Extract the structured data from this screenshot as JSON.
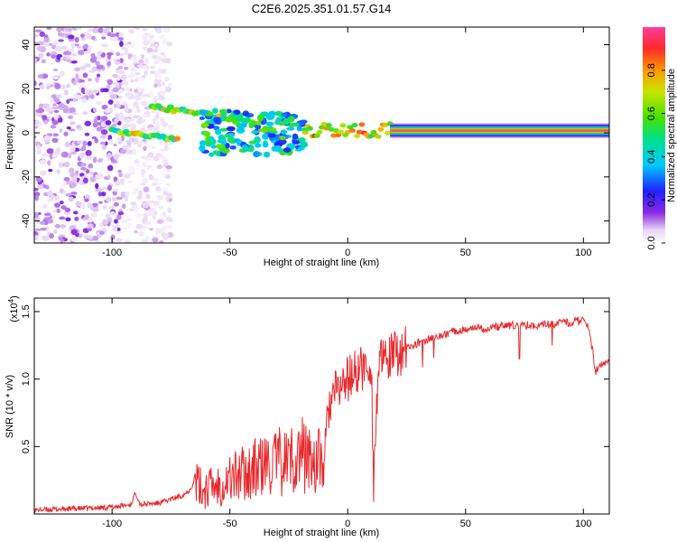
{
  "title": "C2E6.2025.351.01.57.G14",
  "chart_data": [
    {
      "type": "heatmap",
      "xlabel": "Height of straight line (km)",
      "ylabel": "Frequency (Hz)",
      "xlim": [
        -133,
        111
      ],
      "ylim": [
        -50,
        48
      ],
      "xticks": [
        -100,
        -50,
        0,
        50,
        100
      ],
      "yticks": [
        -40,
        -20,
        0,
        20,
        40
      ],
      "colorbar": {
        "label": "Normalized spectral amplitude",
        "range": [
          0,
          1
        ],
        "ticks": [
          "0.0",
          "0.2",
          "0.4",
          "0.6",
          "0.8"
        ]
      },
      "features": [
        {
          "name": "carrier-line",
          "x": [
            18,
            111
          ],
          "freq_hz": 1,
          "amplitude": 1.0
        },
        {
          "name": "upper-branch",
          "x": [
            -83,
            -40
          ],
          "freq_hz_start": 12,
          "freq_hz_end": 5,
          "amplitude": 0.7
        },
        {
          "name": "lower-branch",
          "x": [
            -100,
            -72
          ],
          "freq_hz_start": 1,
          "freq_hz_end": -3,
          "amplitude": 0.75
        },
        {
          "name": "turbulent-region",
          "x": [
            -62,
            -18
          ],
          "freq_range_hz": [
            -10,
            10
          ],
          "amplitude": 0.45
        },
        {
          "name": "merging-region",
          "x": [
            -18,
            18
          ],
          "freq_range_hz": [
            -2,
            5
          ],
          "amplitude": 0.85
        },
        {
          "name": "noise-region",
          "x": [
            -133,
            -75
          ],
          "freq_range_hz": [
            -50,
            48
          ],
          "amplitude": 0.08
        }
      ]
    },
    {
      "type": "line",
      "xlabel": "Height of straight line (km)",
      "ylabel": "SNR (10 * v/v)",
      "multiplier": "(x10",
      "multiplier_exp": "4",
      "multiplier_close": ")",
      "xlim": [
        -133,
        111
      ],
      "ylim": [
        0,
        1.6
      ],
      "xticks": [
        -100,
        -50,
        0,
        50,
        100
      ],
      "yticks": [
        {
          "value": 1.5,
          "label": "1.5"
        },
        {
          "value": 1.0,
          "label": "1.0"
        },
        {
          "value": 0.5,
          "label": "0.5"
        }
      ],
      "series": [
        {
          "name": "SNR",
          "color": "#e8282b",
          "x": [
            -133,
            -115,
            -100,
            -92,
            -90,
            -88,
            -80,
            -70,
            -67,
            -65,
            -62,
            -55,
            -48,
            -40,
            -30,
            -22,
            -20,
            -15,
            -10,
            -8,
            -5,
            0,
            5,
            10,
            11,
            13,
            20,
            30,
            40,
            50,
            60,
            70,
            80,
            90,
            95,
            100,
            102,
            104,
            105,
            108,
            111
          ],
          "y": [
            0.03,
            0.04,
            0.05,
            0.07,
            0.16,
            0.07,
            0.08,
            0.14,
            0.18,
            0.25,
            0.18,
            0.22,
            0.28,
            0.33,
            0.38,
            0.42,
            0.45,
            0.4,
            0.38,
            0.8,
            0.9,
            1.0,
            1.07,
            1.1,
            0.25,
            1.1,
            1.18,
            1.27,
            1.33,
            1.37,
            1.38,
            1.4,
            1.4,
            1.41,
            1.42,
            1.44,
            1.38,
            1.2,
            1.05,
            1.12,
            1.14
          ]
        }
      ]
    }
  ]
}
